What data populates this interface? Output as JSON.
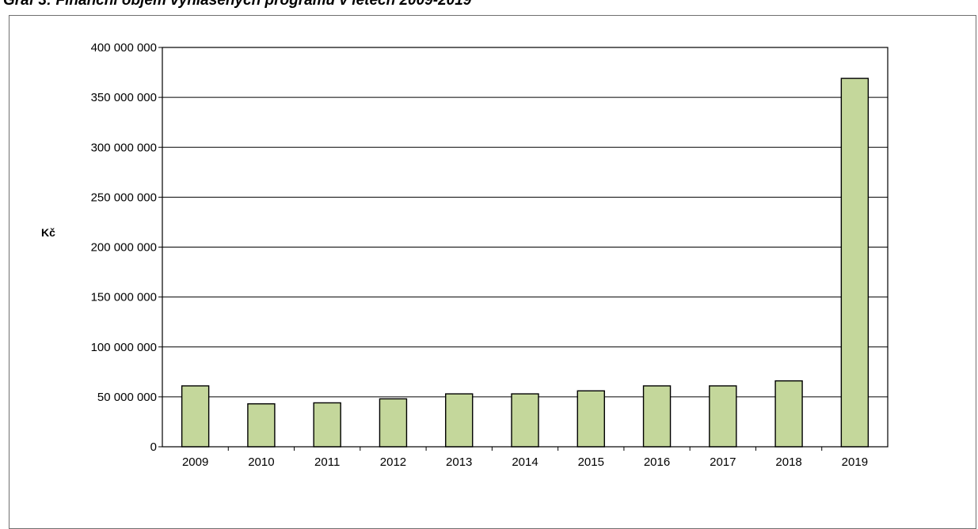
{
  "title": "Graf 3: Finanční objem vyhlášených programů v letech 2009-2019",
  "chart_data": {
    "type": "bar",
    "title": "Graf 3: Finanční objem vyhlášených programů v letech 2009-2019",
    "xlabel": "",
    "ylabel": "Kč",
    "categories": [
      "2009",
      "2010",
      "2011",
      "2012",
      "2013",
      "2014",
      "2015",
      "2016",
      "2017",
      "2018",
      "2019"
    ],
    "values": [
      61000000,
      43000000,
      44000000,
      48000000,
      53000000,
      53000000,
      56000000,
      61000000,
      61000000,
      66000000,
      369000000
    ],
    "ylim": [
      0,
      400000000
    ],
    "yticks": [
      0,
      50000000,
      100000000,
      150000000,
      200000000,
      250000000,
      300000000,
      350000000,
      400000000
    ],
    "ytick_labels": [
      "0",
      "50 000 000",
      "100 000 000",
      "150 000 000",
      "200 000 000",
      "250 000 000",
      "300 000 000",
      "350 000 000",
      "400 000 000"
    ],
    "grid": true,
    "legend": "none",
    "bar_color": "#c4d79b",
    "bar_edge_color": "#000000"
  }
}
